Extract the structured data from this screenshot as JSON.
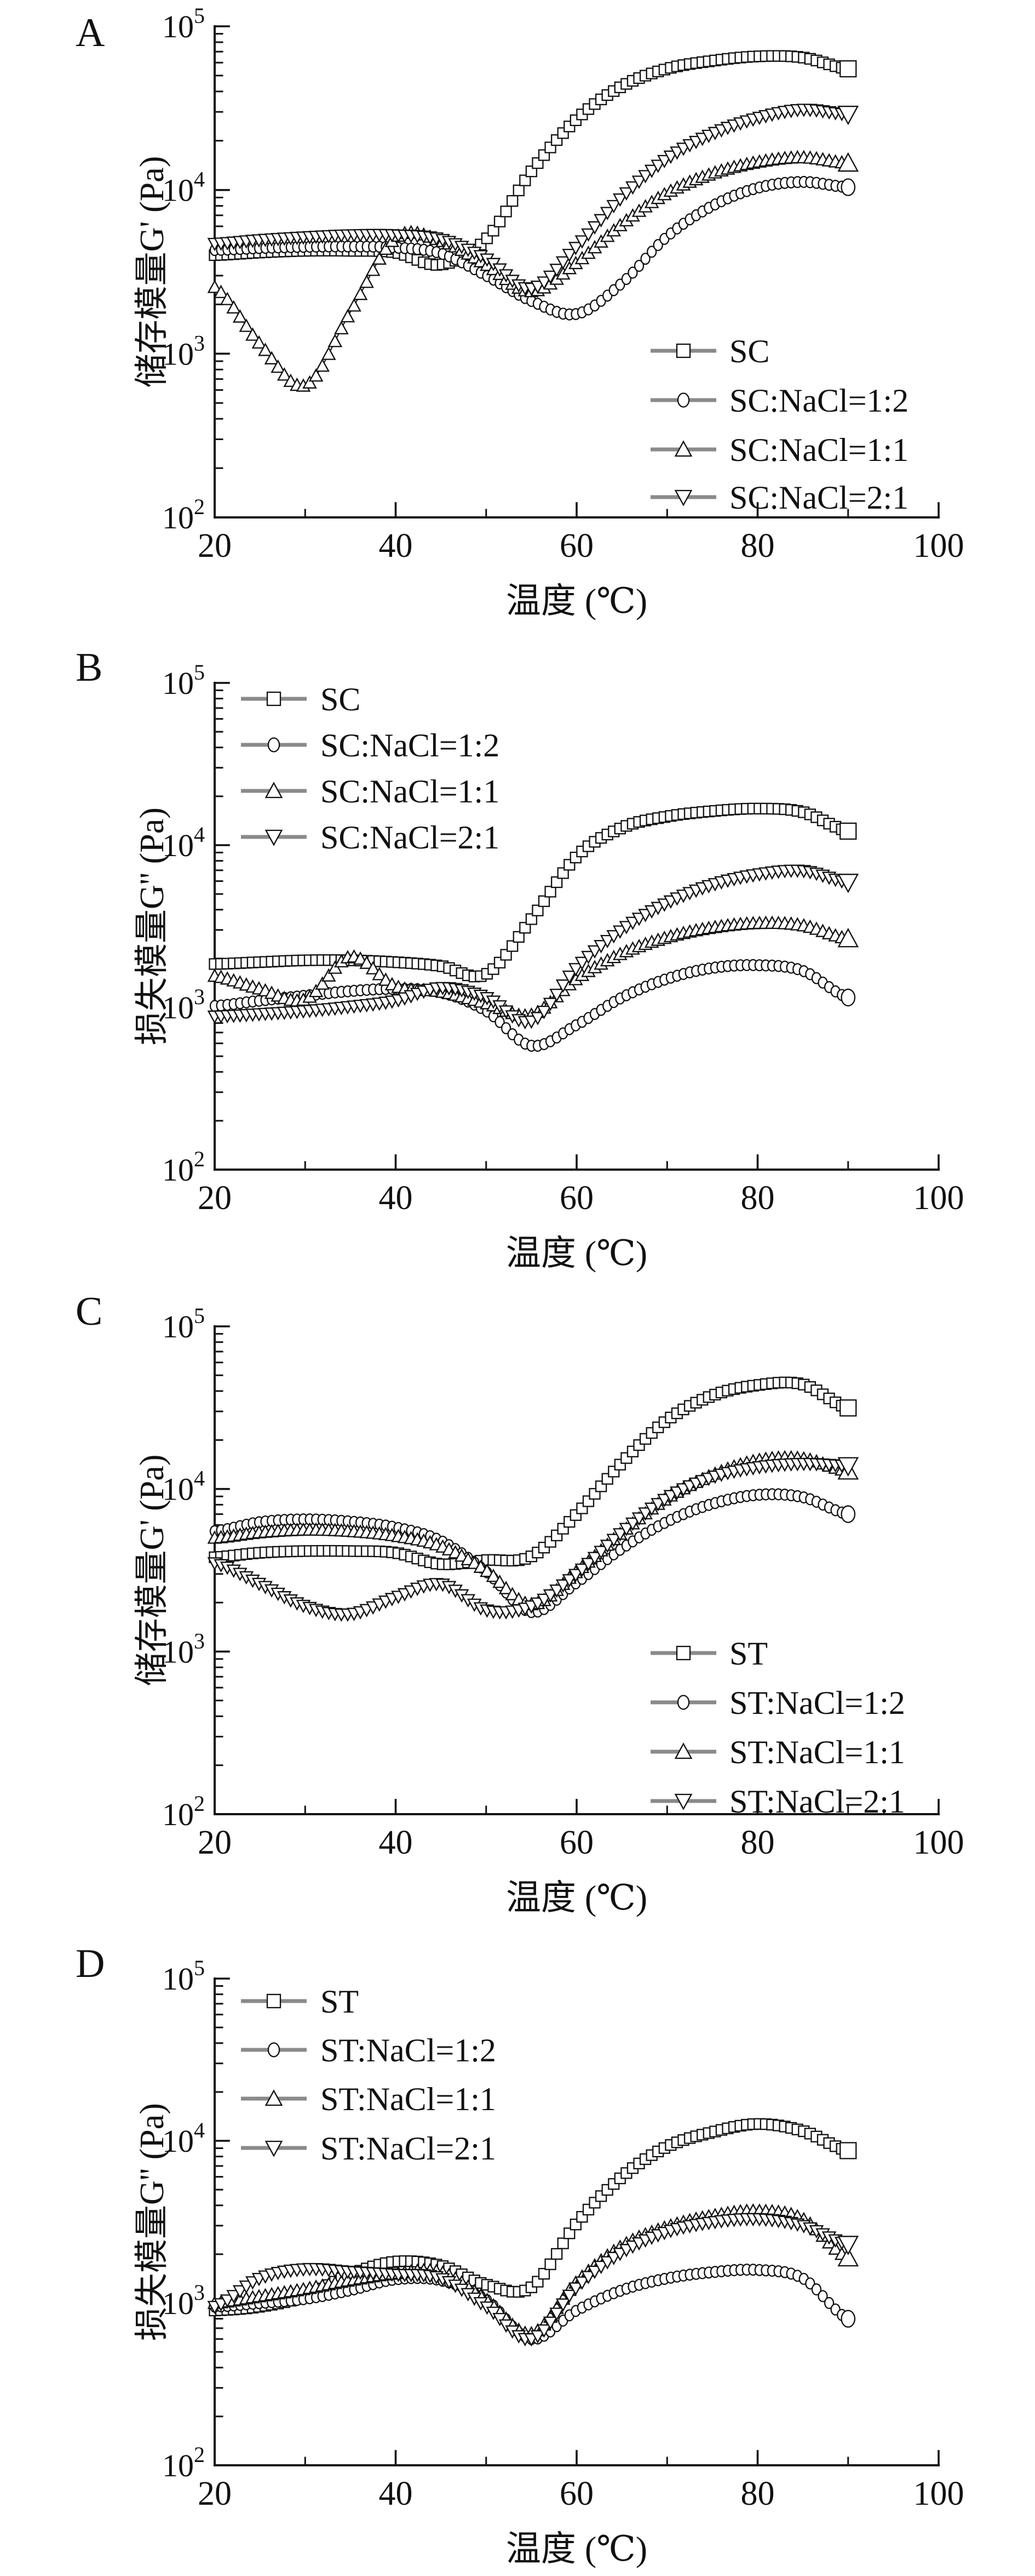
{
  "figure": {
    "background": "#ffffff",
    "ink": "#111111",
    "marker_fill": "#ffffff",
    "legend_line_color": "#8a8a8a"
  },
  "chart_data": [
    {
      "panel": "A",
      "type": "line",
      "title": "",
      "xlabel": "温度 (℃)",
      "ylabel": "储存模量G' (Pa)",
      "x_axis": {
        "min": 20,
        "max": 100,
        "major_ticks": [
          20,
          40,
          60,
          80,
          100
        ],
        "minor_ticks": [
          30,
          50,
          70,
          90
        ]
      },
      "y_axis": {
        "scale": "log",
        "base_label": "10",
        "exponents": [
          2,
          3,
          4,
          5
        ],
        "min": 100,
        "max": 100000
      },
      "grid": "off",
      "legend_position": "inside-lower-right",
      "x": [
        20,
        25,
        30,
        35,
        40,
        45,
        50,
        55,
        60,
        65,
        70,
        75,
        80,
        85,
        90
      ],
      "series": [
        {
          "name": "SC",
          "marker": "square",
          "values": [
            4000,
            4150,
            4250,
            4250,
            4150,
            3500,
            5000,
            13000,
            27000,
            43000,
            55000,
            61500,
            65500,
            64500,
            55000
          ]
        },
        {
          "name": "SC:NaCl=1:2",
          "marker": "circle",
          "values": [
            4300,
            4420,
            4500,
            4520,
            4450,
            4100,
            3000,
            2100,
            1750,
            2700,
            5200,
            8000,
            10300,
            11200,
            10400
          ]
        },
        {
          "name": "SC:NaCl=1:1",
          "marker": "triangle-up",
          "values": [
            2550,
            1150,
            640,
            1800,
            5100,
            4900,
            3500,
            2400,
            3600,
            6200,
            9600,
            12600,
            14800,
            15800,
            14600
          ]
        },
        {
          "name": "SC:NaCl=2:1",
          "marker": "triangle-down",
          "values": [
            4700,
            4950,
            5150,
            5300,
            5300,
            5000,
            3800,
            2500,
            4500,
            9000,
            15500,
            22000,
            27500,
            31000,
            29000
          ]
        }
      ]
    },
    {
      "panel": "B",
      "type": "line",
      "title": "",
      "xlabel": "温度 (℃)",
      "ylabel": "损失模量G'' (Pa)",
      "x_axis": {
        "min": 20,
        "max": 100,
        "major_ticks": [
          20,
          40,
          60,
          80,
          100
        ],
        "minor_ticks": [
          30,
          50,
          70,
          90
        ]
      },
      "y_axis": {
        "scale": "log",
        "base_label": "10",
        "exponents": [
          2,
          3,
          4,
          5
        ],
        "min": 100,
        "max": 100000
      },
      "grid": "off",
      "legend_position": "inside-upper-left",
      "x": [
        20,
        25,
        30,
        35,
        40,
        45,
        50,
        55,
        60,
        65,
        70,
        75,
        80,
        85,
        90
      ],
      "series": [
        {
          "name": "SC",
          "marker": "square",
          "values": [
            1850,
            1900,
            1950,
            1950,
            1900,
            1800,
            1600,
            3500,
            8500,
            12800,
            15000,
            16200,
            16800,
            16000,
            12200
          ]
        },
        {
          "name": "SC:NaCl=1:2",
          "marker": "circle",
          "values": [
            1020,
            1100,
            1180,
            1260,
            1300,
            1240,
            950,
            580,
            780,
            1150,
            1500,
            1750,
            1820,
            1680,
            1150
          ]
        },
        {
          "name": "SC:NaCl=1:1",
          "marker": "triangle-up",
          "values": [
            1560,
            1300,
            1120,
            2050,
            1350,
            1250,
            1060,
            900,
            1500,
            2150,
            2700,
            3100,
            3300,
            3200,
            2650
          ]
        },
        {
          "name": "SC:NaCl=2:1",
          "marker": "triangle-down",
          "values": [
            880,
            910,
            950,
            1010,
            1100,
            1320,
            1150,
            820,
            1750,
            3000,
            4400,
            5700,
            6600,
            6950,
            5900
          ]
        }
      ]
    },
    {
      "panel": "C",
      "type": "line",
      "title": "",
      "xlabel": "温度 (℃)",
      "ylabel": "储存模量G' (Pa)",
      "x_axis": {
        "min": 20,
        "max": 100,
        "major_ticks": [
          20,
          40,
          60,
          80,
          100
        ],
        "minor_ticks": [
          30,
          50,
          70,
          90
        ]
      },
      "y_axis": {
        "scale": "log",
        "base_label": "10",
        "exponents": [
          2,
          3,
          4,
          5
        ],
        "min": 100,
        "max": 100000
      },
      "grid": "off",
      "legend_position": "inside-lower-right",
      "x": [
        20,
        25,
        30,
        35,
        40,
        45,
        50,
        55,
        60,
        65,
        70,
        75,
        80,
        85,
        90
      ],
      "series": [
        {
          "name": "ST",
          "marker": "square",
          "values": [
            3800,
            4050,
            4150,
            4150,
            4050,
            3450,
            3650,
            3850,
            7000,
            14500,
            26500,
            37500,
            43500,
            44000,
            31500
          ]
        },
        {
          "name": "ST:NaCl=1:2",
          "marker": "circle",
          "values": [
            5500,
            6250,
            6500,
            6300,
            5800,
            4800,
            3100,
            1750,
            2650,
            4300,
            6300,
            8100,
            9200,
            8900,
            7000
          ]
        },
        {
          "name": "ST:NaCl=1:1",
          "marker": "triangle-up",
          "values": [
            5000,
            5400,
            5600,
            5500,
            5150,
            4450,
            3150,
            1950,
            3100,
            5400,
            8800,
            12200,
            15000,
            15400,
            12900
          ]
        },
        {
          "name": "ST:NaCl=2:1",
          "marker": "triangle-down",
          "values": [
            3500,
            2600,
            1900,
            1700,
            2150,
            2600,
            1800,
            1900,
            3000,
            5400,
            8800,
            11800,
            13600,
            14300,
            13900
          ]
        }
      ]
    },
    {
      "panel": "D",
      "type": "line",
      "title": "",
      "xlabel": "温度 (℃)",
      "ylabel": "损失模量G'' (Pa)",
      "x_axis": {
        "min": 20,
        "max": 100,
        "major_ticks": [
          20,
          40,
          60,
          80,
          100
        ],
        "minor_ticks": [
          30,
          50,
          70,
          90
        ]
      },
      "y_axis": {
        "scale": "log",
        "base_label": "10",
        "exponents": [
          2,
          3,
          4,
          5
        ],
        "min": 100,
        "max": 100000
      },
      "grid": "off",
      "legend_position": "inside-upper-left",
      "x": [
        20,
        25,
        30,
        35,
        40,
        45,
        50,
        55,
        60,
        65,
        70,
        75,
        80,
        85,
        90
      ],
      "series": [
        {
          "name": "ST",
          "marker": "square",
          "values": [
            900,
            950,
            1100,
            1500,
            1800,
            1700,
            1300,
            1250,
            3100,
            6000,
            9200,
            11300,
            12700,
            11500,
            8700
          ]
        },
        {
          "name": "ST:NaCl=1:2",
          "marker": "circle",
          "values": [
            950,
            1000,
            1060,
            1200,
            1400,
            1380,
            1050,
            600,
            900,
            1200,
            1420,
            1550,
            1600,
            1420,
            800
          ]
        },
        {
          "name": "ST:NaCl=1:1",
          "marker": "triangle-up",
          "values": [
            1000,
            1100,
            1220,
            1380,
            1520,
            1550,
            1050,
            650,
            1350,
            2250,
            2950,
            3450,
            3700,
            3300,
            1900
          ]
        },
        {
          "name": "ST:NaCl=2:1",
          "marker": "triangle-down",
          "values": [
            950,
            1420,
            1620,
            1560,
            1500,
            1420,
            950,
            600,
            1250,
            2050,
            2750,
            3150,
            3300,
            3000,
            2300
          ]
        }
      ]
    }
  ]
}
